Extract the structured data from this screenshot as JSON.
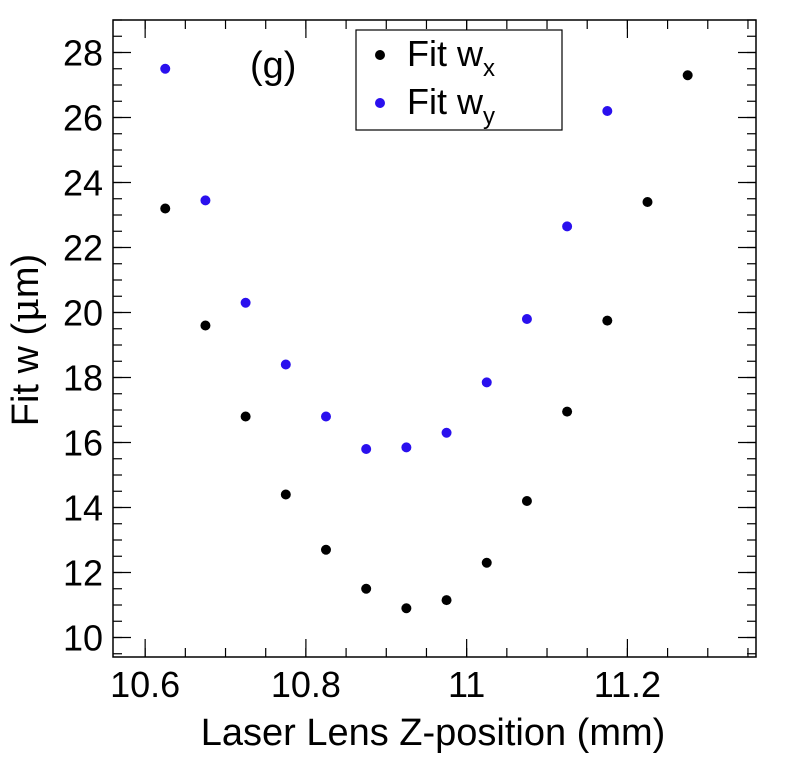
{
  "chart_data": {
    "type": "scatter",
    "annotation": "(g)",
    "xlabel": "Laser Lens Z-position (mm)",
    "ylabel_parts": [
      "Fit w (",
      "μ",
      "m)"
    ],
    "xlim": [
      10.56,
      11.36
    ],
    "ylim": [
      9.4,
      29.0
    ],
    "x_ticks": [
      10.6,
      10.8,
      11,
      11.2
    ],
    "x_tick_labels": [
      "10.6",
      "10.8",
      "11",
      "11.2"
    ],
    "y_ticks": [
      10,
      12,
      14,
      16,
      18,
      20,
      22,
      24,
      26,
      28
    ],
    "y_tick_labels": [
      "10",
      "12",
      "14",
      "16",
      "18",
      "20",
      "22",
      "24",
      "26",
      "28"
    ],
    "grid": false,
    "legend_position": "top-center",
    "series": [
      {
        "name": "Fit w",
        "subscript": "x",
        "color": "#000000",
        "x": [
          10.625,
          10.675,
          10.725,
          10.775,
          10.825,
          10.875,
          10.925,
          10.975,
          11.025,
          11.075,
          11.125,
          11.175,
          11.225,
          11.275
        ],
        "y": [
          23.2,
          19.6,
          16.8,
          14.4,
          12.7,
          11.5,
          10.9,
          11.15,
          12.3,
          14.2,
          16.95,
          19.75,
          23.4,
          27.3
        ]
      },
      {
        "name": "Fit w",
        "subscript": "y",
        "color": "#2a10ee",
        "x": [
          10.625,
          10.675,
          10.725,
          10.775,
          10.825,
          10.875,
          10.925,
          10.975,
          11.025,
          11.075,
          11.125,
          11.175
        ],
        "y": [
          27.5,
          23.45,
          20.3,
          18.4,
          16.8,
          15.8,
          15.85,
          16.3,
          17.85,
          19.8,
          22.65,
          26.2
        ]
      }
    ]
  }
}
